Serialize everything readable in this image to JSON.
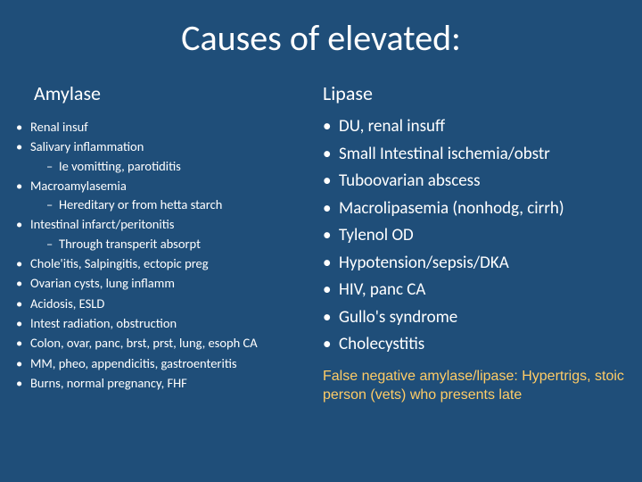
{
  "background_color": "#1f4e79",
  "text_color": "#ffffff",
  "footnote_color": "#ffcc66",
  "title": "Causes of elevated:",
  "left": {
    "heading": "Amylase",
    "items": [
      {
        "text": "Renal insuf"
      },
      {
        "text": "Salivary inflammation",
        "sub": [
          "Ie vomitting, parotiditis"
        ]
      },
      {
        "text": "Macroamylasemia",
        "sub": [
          "Hereditary or from hetta starch"
        ]
      },
      {
        "text": "Intestinal infarct/peritonitis",
        "sub": [
          "Through transperit absorpt"
        ]
      },
      {
        "text": "Chole'itis, Salpingitis, ectopic preg"
      },
      {
        "text": "Ovarian cysts, lung inflamm"
      },
      {
        "text": "Acidosis, ESLD"
      },
      {
        "text": "Intest radiation, obstruction"
      },
      {
        "text": "Colon, ovar, panc, brst, prst, lung, esoph CA"
      },
      {
        "text": "MM, pheo, appendicitis, gastroenteritis"
      },
      {
        "text": "Burns, normal pregnancy, FHF"
      }
    ]
  },
  "right": {
    "heading": "Lipase",
    "items": [
      "DU, renal insuff",
      "Small Intestinal ischemia/obstr",
      "Tuboovarian abscess",
      "Macrolipasemia (nonhodg, cirrh)",
      "Tylenol OD",
      "Hypotension/sepsis/DKA",
      "HIV, panc CA",
      "Gullo's syndrome",
      "Cholecystitis"
    ],
    "footnote": "False negative amylase/lipase:  Hypertrigs, stoic person (vets) who presents late"
  }
}
